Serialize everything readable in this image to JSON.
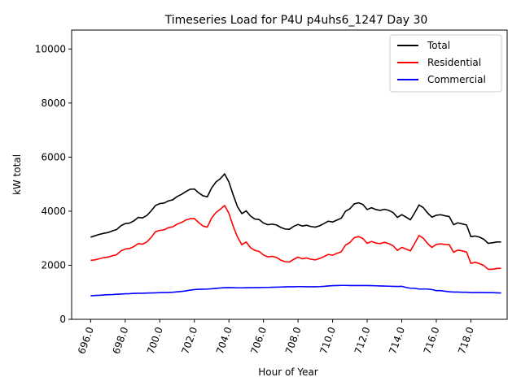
{
  "chart_data": {
    "type": "line",
    "title": "Timeseries Load for P4U p4uhs6_1247  Day 30",
    "xlabel": "Hour of Year",
    "ylabel": "kW total",
    "xlim": [
      694.9,
      720.1
    ],
    "ylim": [
      0,
      10700
    ],
    "x_start": 696.0,
    "x_step": 0.25,
    "x_ticks": [
      696.0,
      698.0,
      700.0,
      702.0,
      704.0,
      706.0,
      708.0,
      710.0,
      712.0,
      714.0,
      716.0,
      718.0
    ],
    "x_tick_labels": [
      "696.0",
      "698.0",
      "700.0",
      "702.0",
      "704.0",
      "706.0",
      "708.0",
      "710.0",
      "712.0",
      "714.0",
      "716.0",
      "718.0"
    ],
    "y_ticks": [
      0,
      2000,
      4000,
      6000,
      8000,
      10000
    ],
    "y_tick_labels": [
      "0",
      "2000",
      "4000",
      "6000",
      "8000",
      "10000"
    ],
    "legend_position": "top-right",
    "series": [
      {
        "name": "Total",
        "color": "#000000",
        "values": [
          3040,
          3090,
          3140,
          3180,
          3210,
          3270,
          3320,
          3460,
          3540,
          3560,
          3640,
          3770,
          3750,
          3840,
          4010,
          4210,
          4280,
          4300,
          4380,
          4420,
          4540,
          4620,
          4720,
          4810,
          4820,
          4680,
          4570,
          4530,
          4860,
          5080,
          5200,
          5380,
          5080,
          4600,
          4160,
          3910,
          4010,
          3820,
          3710,
          3690,
          3560,
          3500,
          3520,
          3490,
          3400,
          3340,
          3330,
          3440,
          3510,
          3450,
          3480,
          3430,
          3410,
          3460,
          3540,
          3630,
          3600,
          3670,
          3740,
          4000,
          4090,
          4270,
          4310,
          4250,
          4060,
          4130,
          4060,
          4030,
          4070,
          4030,
          3950,
          3770,
          3870,
          3780,
          3680,
          3940,
          4230,
          4130,
          3930,
          3780,
          3850,
          3870,
          3830,
          3800,
          3500,
          3570,
          3530,
          3490,
          3060,
          3080,
          3040,
          2960,
          2810,
          2830,
          2860,
          2860
        ]
      },
      {
        "name": "Residential",
        "color": "#ff0000",
        "values": [
          2180,
          2200,
          2240,
          2280,
          2300,
          2350,
          2390,
          2530,
          2600,
          2620,
          2690,
          2800,
          2780,
          2860,
          3030,
          3240,
          3290,
          3310,
          3390,
          3420,
          3520,
          3580,
          3670,
          3720,
          3730,
          3580,
          3450,
          3410,
          3750,
          3950,
          4070,
          4210,
          3920,
          3440,
          3040,
          2760,
          2860,
          2650,
          2550,
          2510,
          2380,
          2310,
          2330,
          2290,
          2190,
          2130,
          2120,
          2220,
          2300,
          2240,
          2270,
          2220,
          2200,
          2250,
          2320,
          2400,
          2370,
          2440,
          2500,
          2750,
          2840,
          3020,
          3060,
          2990,
          2810,
          2880,
          2820,
          2800,
          2850,
          2800,
          2720,
          2550,
          2660,
          2600,
          2530,
          2810,
          3100,
          3000,
          2800,
          2660,
          2770,
          2790,
          2770,
          2760,
          2480,
          2560,
          2530,
          2490,
          2070,
          2110,
          2060,
          1990,
          1850,
          1850,
          1880,
          1890
        ]
      },
      {
        "name": "Commercial",
        "color": "#0000ff",
        "values": [
          870,
          880,
          890,
          900,
          910,
          915,
          925,
          935,
          945,
          950,
          960,
          965,
          965,
          970,
          975,
          980,
          985,
          990,
          995,
          1000,
          1015,
          1030,
          1050,
          1080,
          1100,
          1110,
          1115,
          1120,
          1130,
          1145,
          1160,
          1170,
          1175,
          1170,
          1165,
          1165,
          1170,
          1170,
          1175,
          1175,
          1180,
          1180,
          1185,
          1190,
          1195,
          1200,
          1205,
          1205,
          1210,
          1210,
          1205,
          1205,
          1205,
          1210,
          1220,
          1235,
          1245,
          1250,
          1255,
          1255,
          1250,
          1250,
          1250,
          1250,
          1250,
          1245,
          1240,
          1235,
          1230,
          1225,
          1220,
          1215,
          1220,
          1180,
          1150,
          1150,
          1120,
          1120,
          1120,
          1100,
          1060,
          1060,
          1040,
          1020,
          1010,
          1010,
          1000,
          1000,
          990,
          990,
          990,
          990,
          985,
          985,
          980,
          975
        ]
      }
    ]
  }
}
